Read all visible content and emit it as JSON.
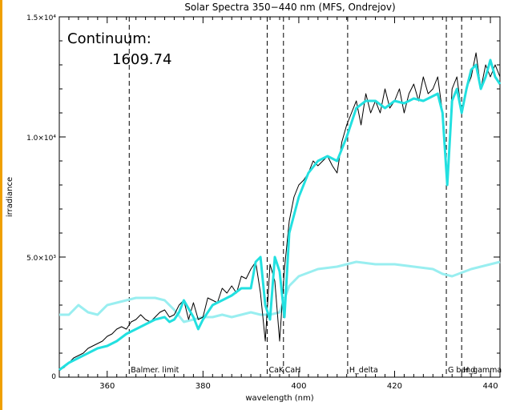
{
  "chart_data": {
    "type": "line",
    "title": "Solar Spectra 350−440 nm (MFS, Ondrejov)",
    "xlabel": "wavelength (nm)",
    "ylabel": "irradiance",
    "xlim": [
      350,
      442
    ],
    "ylim": [
      0,
      15000
    ],
    "xticks": [
      360,
      380,
      400,
      420,
      440
    ],
    "xtick_labels": [
      "360",
      "380",
      "400",
      "420",
      "440"
    ],
    "yticks": [
      5000,
      10000,
      15000
    ],
    "ytick_labels": [
      "5.0×10³",
      "1.0×10⁴",
      "1.5×10⁴"
    ],
    "grid": false,
    "annotations": {
      "continuum_label": "Continuum:",
      "continuum_value": "1609.74"
    },
    "markers": [
      {
        "x": 364.6,
        "label": "Balmer. limit"
      },
      {
        "x": 393.4,
        "label": "CaK"
      },
      {
        "x": 396.8,
        "label": "CaH"
      },
      {
        "x": 410.2,
        "label": "H_delta"
      },
      {
        "x": 430.8,
        "label": "G band"
      },
      {
        "x": 434.0,
        "label": "H_gamma"
      }
    ],
    "series": [
      {
        "color": "#000000",
        "x": [
          350,
          351,
          352,
          353,
          354,
          355,
          356,
          357,
          358,
          359,
          360,
          361,
          362,
          363,
          364,
          365,
          366,
          367,
          368,
          369,
          370,
          371,
          372,
          373,
          374,
          375,
          376,
          377,
          378,
          379,
          380,
          381,
          382,
          383,
          384,
          385,
          386,
          387,
          388,
          389,
          390,
          391,
          392,
          393,
          394,
          395,
          396,
          397,
          398,
          399,
          400,
          401,
          402,
          403,
          404,
          405,
          406,
          407,
          408,
          409,
          410,
          411,
          412,
          413,
          414,
          415,
          416,
          417,
          418,
          419,
          420,
          421,
          422,
          423,
          424,
          425,
          426,
          427,
          428,
          429,
          430,
          431,
          432,
          433,
          434,
          435,
          436,
          437,
          438,
          439,
          440,
          441,
          442
        ],
        "y": [
          300,
          400,
          600,
          800,
          900,
          1000,
          1200,
          1300,
          1400,
          1500,
          1700,
          1800,
          2000,
          2100,
          2000,
          2300,
          2400,
          2600,
          2400,
          2300,
          2500,
          2700,
          2800,
          2500,
          2600,
          3000,
          3200,
          2400,
          3100,
          2400,
          2500,
          3300,
          3200,
          3100,
          3700,
          3500,
          3800,
          3500,
          4200,
          4100,
          4500,
          4800,
          3500,
          1500,
          4700,
          4000,
          1500,
          4500,
          6500,
          7500,
          8000,
          8200,
          8500,
          9000,
          8800,
          9000,
          9200,
          8800,
          8500,
          9800,
          10500,
          11000,
          11500,
          10500,
          11800,
          11000,
          11500,
          11000,
          12000,
          11200,
          11500,
          12000,
          11000,
          11800,
          12200,
          11500,
          12500,
          11800,
          12000,
          12500,
          11000,
          8000,
          12000,
          12500,
          11000,
          12000,
          12500,
          13500,
          12000,
          13000,
          12500,
          13000,
          12500
        ]
      },
      {
        "color": "#22e0e0",
        "x": [
          350,
          352,
          354,
          356,
          358,
          360,
          362,
          364,
          366,
          368,
          370,
          372,
          373,
          374,
          375,
          376,
          378,
          379,
          380,
          382,
          384,
          386,
          388,
          390,
          391,
          392,
          393,
          394,
          395,
          396,
          397,
          398,
          400,
          402,
          404,
          406,
          408,
          410,
          412,
          414,
          416,
          418,
          420,
          422,
          424,
          426,
          428,
          429,
          430,
          431,
          432,
          433,
          434,
          435,
          436,
          437,
          438,
          439,
          440,
          441,
          442
        ],
        "y": [
          300,
          600,
          800,
          1000,
          1200,
          1300,
          1500,
          1800,
          2000,
          2200,
          2400,
          2500,
          2300,
          2400,
          2700,
          3200,
          2500,
          2000,
          2400,
          3000,
          3200,
          3400,
          3700,
          3700,
          4800,
          5000,
          3000,
          2400,
          5000,
          4400,
          2500,
          6000,
          7500,
          8500,
          9000,
          9200,
          9000,
          10000,
          11200,
          11500,
          11500,
          11200,
          11500,
          11400,
          11600,
          11500,
          11700,
          11800,
          11000,
          8000,
          11500,
          12000,
          11000,
          12000,
          12800,
          13000,
          12000,
          12500,
          13200,
          12500,
          12200
        ]
      },
      {
        "color": "#99eef0",
        "x": [
          350,
          352,
          354,
          356,
          358,
          360,
          362,
          364,
          366,
          368,
          370,
          372,
          374,
          376,
          378,
          380,
          382,
          384,
          386,
          388,
          390,
          392,
          394,
          396,
          398,
          400,
          404,
          408,
          412,
          416,
          420,
          424,
          428,
          430,
          432,
          436,
          440,
          442
        ],
        "y": [
          2600,
          2600,
          3000,
          2700,
          2600,
          3000,
          3100,
          3200,
          3300,
          3300,
          3300,
          3200,
          2800,
          2300,
          2400,
          2500,
          2500,
          2600,
          2500,
          2600,
          2700,
          2600,
          2600,
          2700,
          3800,
          4200,
          4500,
          4600,
          4800,
          4700,
          4700,
          4600,
          4500,
          4300,
          4200,
          4500,
          4700,
          4800
        ]
      }
    ]
  }
}
